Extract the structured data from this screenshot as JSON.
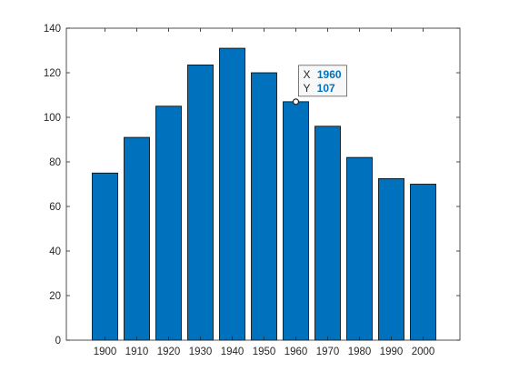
{
  "chart_data": {
    "type": "bar",
    "categories": [
      "1900",
      "1910",
      "1920",
      "1930",
      "1940",
      "1950",
      "1960",
      "1970",
      "1980",
      "1990",
      "2000"
    ],
    "values": [
      75,
      91,
      105,
      123.5,
      131,
      120,
      107,
      96,
      82,
      72.5,
      70
    ],
    "ylim": [
      0,
      140
    ],
    "yticks": [
      0,
      20,
      40,
      60,
      80,
      100,
      120,
      140
    ],
    "bar_color": "#0072BD",
    "bar_edge_color": "#000000",
    "grid": false,
    "datatip": {
      "x_label": "X",
      "x_value": "1960",
      "y_label": "Y",
      "y_value": "107",
      "value_color": "#0072BD"
    }
  }
}
